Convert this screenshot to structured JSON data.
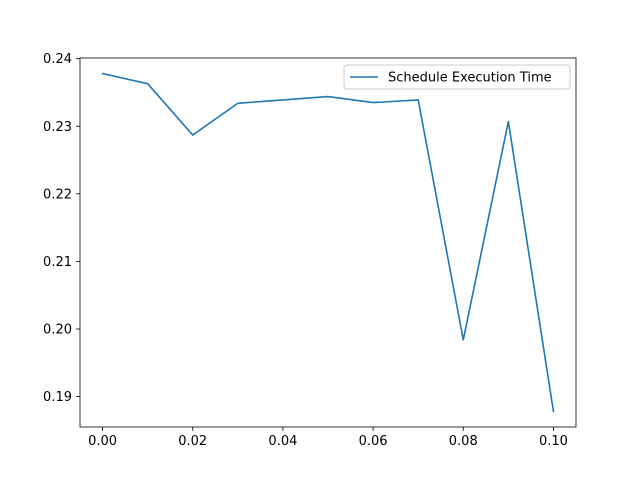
{
  "chart_data": {
    "type": "line",
    "title": "",
    "xlabel": "",
    "ylabel": "",
    "x": [
      0.0,
      0.01,
      0.02,
      0.03,
      0.04,
      0.05,
      0.06,
      0.07,
      0.08,
      0.09,
      0.1
    ],
    "series": [
      {
        "name": "Schedule Execution Time",
        "color": "#1f77b4",
        "values": [
          0.2378,
          0.2363,
          0.2287,
          0.2334,
          0.2339,
          0.2344,
          0.2335,
          0.2339,
          0.1984,
          0.2307,
          0.1878
        ]
      }
    ],
    "xlim": [
      -0.005,
      0.105
    ],
    "ylim": [
      0.1855,
      0.2401
    ],
    "xticks": [
      0.0,
      0.02,
      0.04,
      0.06,
      0.08,
      0.1
    ],
    "xtick_labels": [
      "0.00",
      "0.02",
      "0.04",
      "0.06",
      "0.08",
      "0.10"
    ],
    "yticks": [
      0.19,
      0.2,
      0.21,
      0.22,
      0.23,
      0.24
    ],
    "ytick_labels": [
      "0.19",
      "0.20",
      "0.21",
      "0.22",
      "0.23",
      "0.24"
    ],
    "grid": false,
    "legend_position": "top-right"
  }
}
